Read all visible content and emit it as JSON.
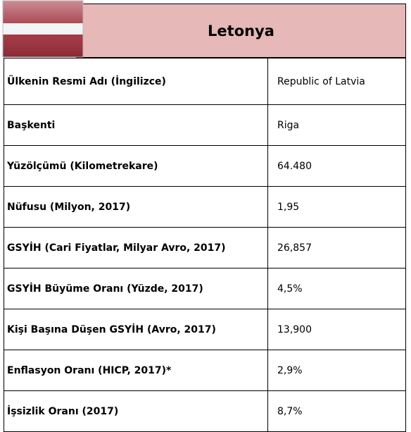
{
  "header": {
    "title": "Letonya"
  },
  "table": {
    "rows": [
      [
        "Ülkenin Resmi Adı (İngilizce)",
        "Republic of Latvia"
      ],
      [
        "Başkenti",
        "Riga"
      ],
      [
        "Yüzölçümü (Kilometrekare)",
        "64.480"
      ],
      [
        "Nüfusu (Milyon, 2017)",
        "1,95"
      ],
      [
        "GSYİH (Cari Fiyatlar, Milyar Avro, 2017)",
        "26,857"
      ],
      [
        "GSYİH Büyüme Oranı (Yüzde, 2017)",
        "4,5%"
      ],
      [
        "Kişi Başına Düşen GSYİH (Avro, 2017)",
        "13,900"
      ],
      [
        "Enflasyon Oranı (HICP, 2017)*",
        "2,9%"
      ],
      [
        "İşsizlik Oranı (2017)",
        "8,7%"
      ]
    ]
  }
}
